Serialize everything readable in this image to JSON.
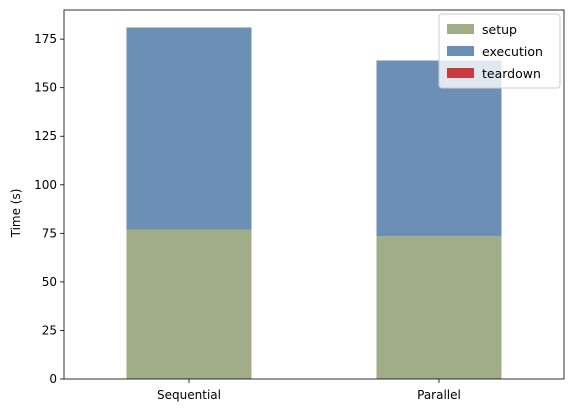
{
  "chart_data": {
    "type": "bar",
    "stacked": true,
    "categories": [
      "Sequential",
      "Parallel"
    ],
    "series": [
      {
        "name": "setup",
        "color": "#a0ad86",
        "values": [
          77,
          73.5
        ]
      },
      {
        "name": "execution",
        "color": "#6b8fb5",
        "values": [
          104,
          90.5
        ]
      },
      {
        "name": "teardown",
        "color": "#c9393e",
        "values": [
          0,
          0
        ]
      }
    ],
    "title": "",
    "xlabel": "",
    "ylabel": "Time (s)",
    "ylim": [
      0,
      190
    ],
    "yticks": [
      0,
      25,
      50,
      75,
      100,
      125,
      150,
      175
    ],
    "grid": false,
    "legend_position": "top-right"
  }
}
